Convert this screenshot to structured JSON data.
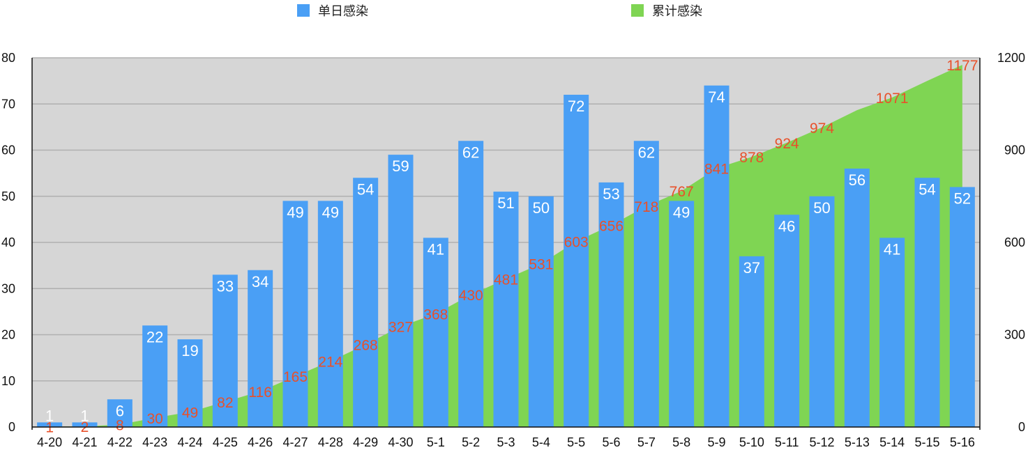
{
  "legend": {
    "series1": "单日感染",
    "series2": "累计感染"
  },
  "colors": {
    "bar": "#4a9ff5",
    "area": "#7fd553",
    "plot_bg": "#d6d6d6",
    "grid": "#b0b0b0",
    "cum_label": "#e8502a",
    "bar_label": "#ffffff"
  },
  "chart_data": {
    "type": "bar",
    "categories": [
      "4-20",
      "4-21",
      "4-22",
      "4-23",
      "4-24",
      "4-25",
      "4-26",
      "4-27",
      "4-28",
      "4-29",
      "4-30",
      "5-1",
      "5-2",
      "5-3",
      "5-4",
      "5-5",
      "5-6",
      "5-7",
      "5-8",
      "5-9",
      "5-10",
      "5-11",
      "5-12",
      "5-13",
      "5-14",
      "5-15",
      "5-16"
    ],
    "series": [
      {
        "name": "单日感染",
        "type": "bar",
        "axis": "left",
        "values": [
          1,
          1,
          6,
          22,
          19,
          33,
          34,
          49,
          49,
          54,
          59,
          41,
          62,
          51,
          50,
          72,
          53,
          62,
          49,
          74,
          37,
          46,
          50,
          56,
          41,
          54,
          52
        ]
      },
      {
        "name": "累计感染",
        "type": "area",
        "axis": "right",
        "values": [
          1,
          2,
          8,
          30,
          49,
          82,
          116,
          165,
          214,
          268,
          327,
          368,
          430,
          481,
          531,
          603,
          656,
          718,
          767,
          841,
          878,
          924,
          974,
          1030,
          1071,
          1125,
          1177
        ],
        "labels": [
          "1",
          "2",
          "8",
          "30",
          "49",
          "82",
          "116",
          "165",
          "214",
          "268",
          "327",
          "368",
          "430",
          "481",
          "531",
          "603",
          "656",
          "718",
          "767",
          "841",
          "878",
          "924",
          "974",
          "",
          "1071",
          "",
          "1177"
        ]
      }
    ],
    "y_left": {
      "lim": [
        0,
        80
      ],
      "ticks": [
        "0",
        "10",
        "20",
        "30",
        "40",
        "50",
        "60",
        "70",
        "80"
      ]
    },
    "y_right": {
      "lim": [
        0,
        1200
      ],
      "ticks": [
        "0",
        "300",
        "600",
        "900",
        "1200"
      ]
    },
    "grid": true,
    "legend_position": "top"
  }
}
